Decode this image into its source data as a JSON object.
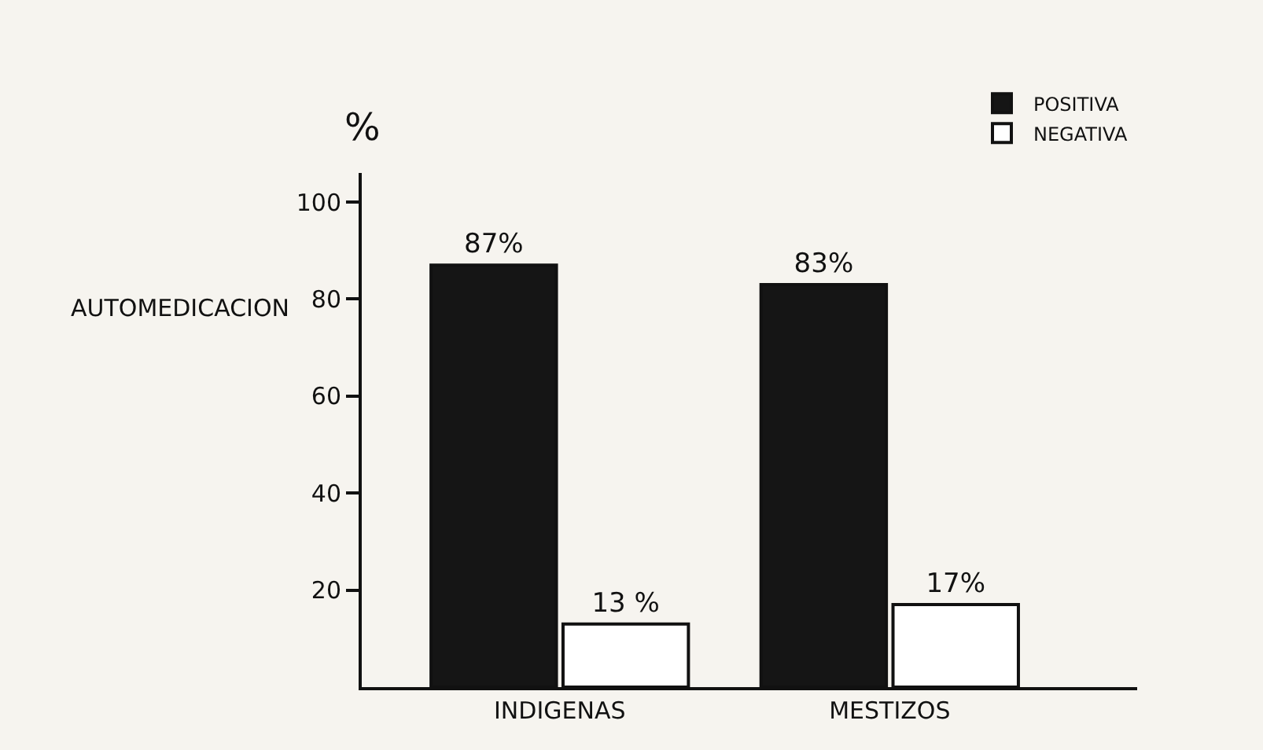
{
  "chart_data": {
    "type": "bar",
    "ylabel": "%",
    "annotations": [
      "AUTOMEDICACION"
    ],
    "categories": [
      "INDIGENAS",
      "MESTIZOS"
    ],
    "series": [
      {
        "name": "POSITIVA",
        "color": "#151515",
        "values": [
          87,
          83
        ],
        "value_labels": [
          "87%",
          "83%"
        ]
      },
      {
        "name": "NEGATIVA",
        "color": "#ffffff",
        "values": [
          13,
          17
        ],
        "value_labels": [
          "13 %",
          "17%"
        ]
      }
    ],
    "ylim": [
      0,
      106
    ],
    "yticks": [
      20,
      40,
      60,
      80,
      100
    ],
    "grid": false,
    "legend": "top right"
  }
}
